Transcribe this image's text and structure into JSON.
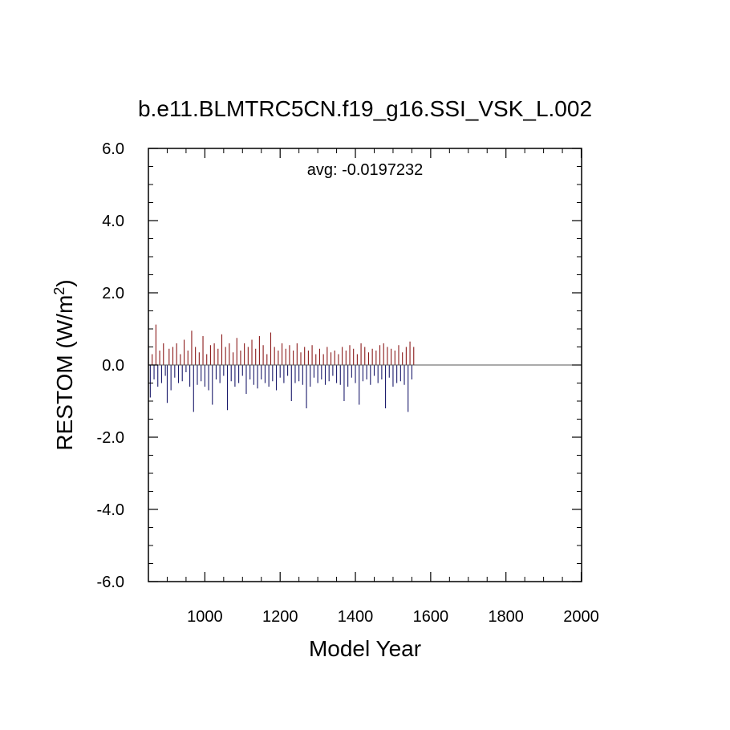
{
  "chart_data": {
    "type": "bar",
    "title": "b.e11.BLMTRC5CN.f19_g16.SSI_VSK_L.002",
    "xlabel": "Model Year",
    "ylabel": "RESTOM (W/m",
    "ylabel_superscript": "2",
    "ylabel_suffix": ")",
    "annotation": "avg: -0.0197232",
    "average": -0.0197232,
    "xlim": [
      850,
      2001
    ],
    "ylim": [
      -6.0,
      6.0
    ],
    "x_ticks": [
      1000,
      1200,
      1400,
      1600,
      1800,
      2000
    ],
    "x_tick_labels": [
      "1000",
      "1200",
      "1400",
      "1600",
      "1800",
      "2000"
    ],
    "y_ticks": [
      -6.0,
      -4.0,
      -2.0,
      0.0,
      2.0,
      4.0,
      6.0
    ],
    "y_tick_labels": [
      "-6.0",
      "-4.0",
      "-2.0",
      "0.0",
      "2.0",
      "4.0",
      "6.0"
    ],
    "x_start": 850,
    "x_end": 1555,
    "positive_color": "#8b1a1a",
    "negative_color": "#1a1a6b",
    "zero_line_color": "#555555",
    "series": [
      {
        "name": "RESTOM",
        "x_start": 850,
        "step": 5,
        "values": [
          0.55,
          -0.9,
          0.3,
          -0.4,
          1.12,
          -0.6,
          0.4,
          -0.5,
          0.6,
          -0.3,
          -1.05,
          0.45,
          -0.7,
          0.5,
          -0.35,
          0.6,
          -0.5,
          0.3,
          -0.45,
          0.7,
          -0.2,
          0.4,
          -0.6,
          0.95,
          -1.3,
          0.5,
          -0.55,
          0.35,
          -0.45,
          0.8,
          -0.6,
          0.3,
          -0.7,
          0.55,
          -1.1,
          0.6,
          -0.4,
          0.45,
          -0.5,
          0.85,
          -0.3,
          0.5,
          -1.25,
          0.6,
          -0.45,
          0.35,
          -0.6,
          0.75,
          -0.5,
          0.4,
          -0.3,
          0.6,
          -0.8,
          0.5,
          -0.4,
          0.7,
          -0.55,
          0.45,
          -0.65,
          0.8,
          -0.4,
          0.55,
          -0.5,
          0.3,
          -0.6,
          0.9,
          -0.45,
          0.5,
          -0.7,
          0.4,
          -0.35,
          0.6,
          -0.5,
          0.45,
          -0.3,
          0.55,
          -1.0,
          0.4,
          -0.5,
          0.6,
          -0.45,
          0.35,
          -0.55,
          0.5,
          -1.2,
          0.4,
          -0.6,
          0.55,
          -0.35,
          0.3,
          -0.5,
          0.45,
          -0.4,
          0.3,
          -0.55,
          0.5,
          -0.45,
          0.35,
          -0.3,
          0.4,
          -0.5,
          0.3,
          -0.55,
          0.5,
          -1.0,
          0.4,
          -0.6,
          0.55,
          -0.35,
          0.45,
          -0.5,
          0.3,
          -1.1,
          0.6,
          -0.45,
          0.5,
          -0.4,
          0.35,
          -0.55,
          0.45,
          -0.3,
          0.4,
          -0.5,
          0.55,
          -0.4,
          0.6,
          -1.2,
          0.5,
          -0.35,
          0.45,
          -0.6,
          0.4,
          -0.5,
          0.55,
          -0.45,
          0.35,
          -0.55,
          0.5,
          -1.3,
          0.65,
          -0.4,
          0.5
        ]
      }
    ]
  }
}
